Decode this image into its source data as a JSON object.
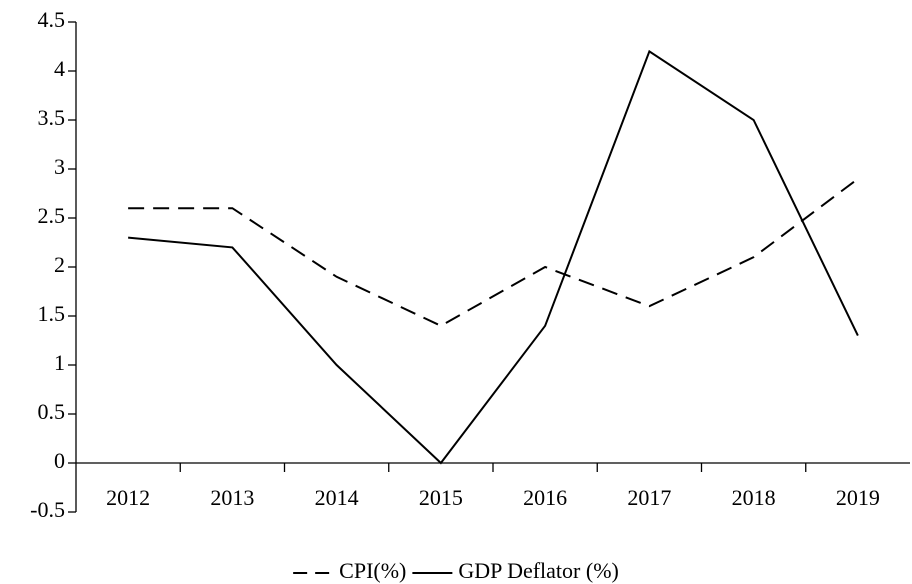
{
  "chart_data": {
    "type": "line",
    "categories": [
      "2012",
      "2013",
      "2014",
      "2015",
      "2016",
      "2017",
      "2018",
      "2019"
    ],
    "series": [
      {
        "name": "CPI(%)",
        "color": "#000000",
        "style": "dashed",
        "values": [
          2.6,
          2.6,
          1.9,
          1.4,
          2.0,
          1.6,
          2.1,
          2.9
        ]
      },
      {
        "name": "GDP Deflator (%)",
        "color": "#000000",
        "style": "solid",
        "values": [
          2.3,
          2.2,
          1.0,
          0,
          1.4,
          4.2,
          3.5,
          1.3
        ]
      }
    ],
    "ylim": [
      -0.5,
      4.5
    ],
    "yticks": [
      -0.5,
      0,
      0.5,
      1,
      1.5,
      2,
      2.5,
      3,
      3.5,
      4,
      4.5
    ],
    "grid": false,
    "legend": "bottom"
  }
}
